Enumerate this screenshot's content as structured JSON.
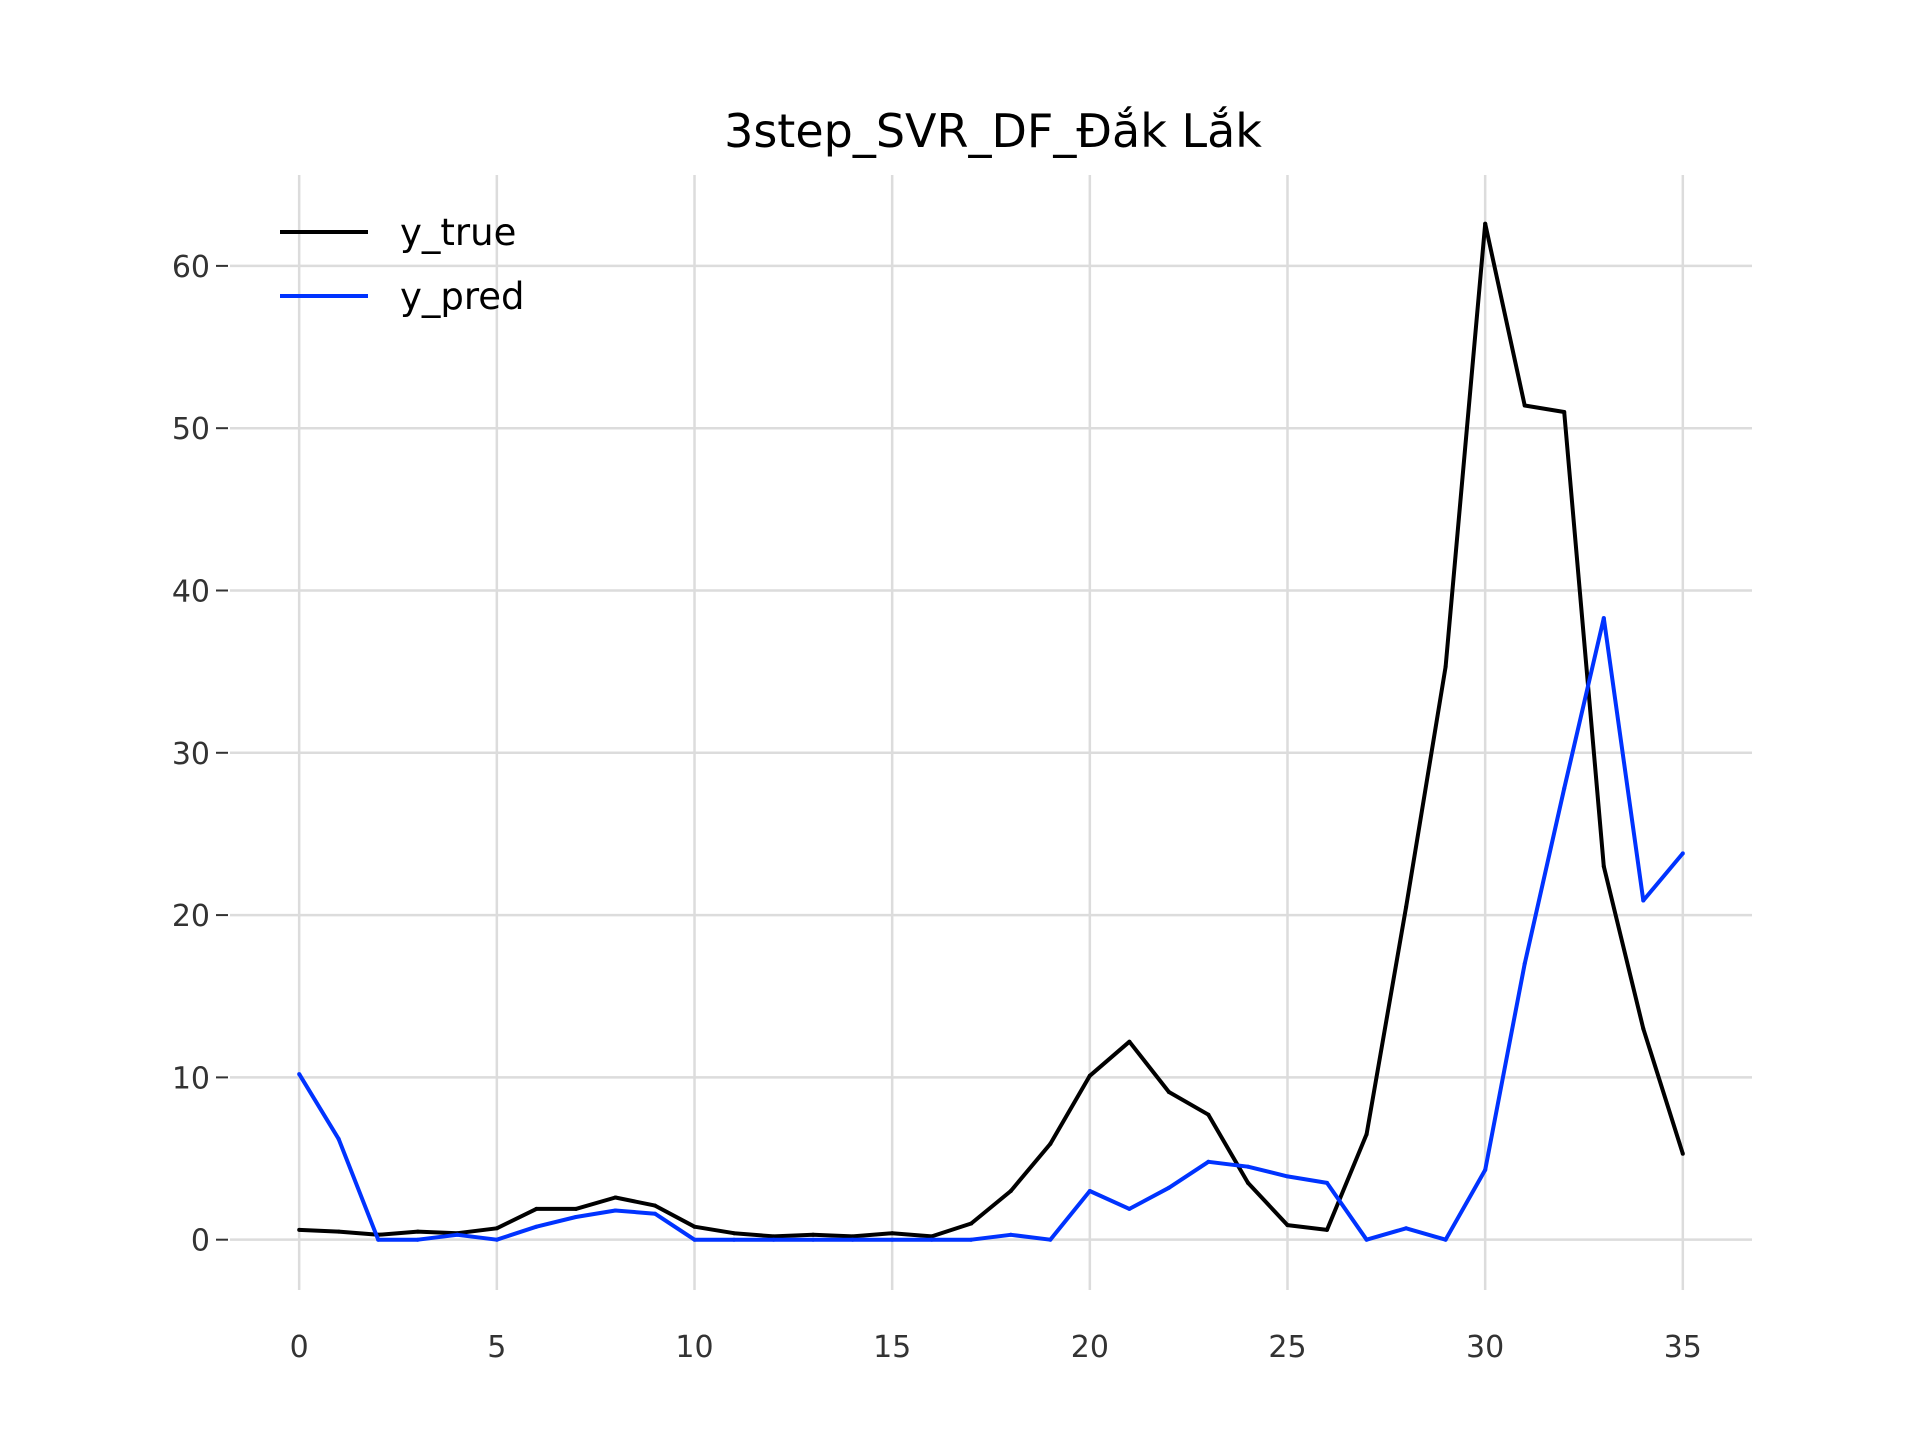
{
  "chart_data": {
    "type": "line",
    "title": "3step_SVR_DF_Đắk Lắk",
    "xlabel": "",
    "ylabel": "",
    "x": [
      0,
      1,
      2,
      3,
      4,
      5,
      6,
      7,
      8,
      9,
      10,
      11,
      12,
      13,
      14,
      15,
      16,
      17,
      18,
      19,
      20,
      21,
      22,
      23,
      24,
      25,
      26,
      27,
      28,
      29,
      30,
      31,
      32,
      33,
      34,
      35
    ],
    "xlim": [
      -1.75,
      36.75
    ],
    "ylim": [
      -3.1,
      65.6
    ],
    "xticks": [
      0,
      5,
      10,
      15,
      20,
      25,
      30,
      35
    ],
    "xtick_labels": [
      "0",
      "5",
      "10",
      "15",
      "20",
      "25",
      "30",
      "35"
    ],
    "yticks": [
      0,
      10,
      20,
      30,
      40,
      50,
      60
    ],
    "ytick_labels": [
      "0",
      "10",
      "20",
      "30",
      "40",
      "50",
      "60"
    ],
    "grid": true,
    "legend_position": "top-left",
    "series": [
      {
        "name": "y_true",
        "color": "#000000",
        "values": [
          0.6,
          0.5,
          0.3,
          0.5,
          0.4,
          0.7,
          1.9,
          1.9,
          2.6,
          2.1,
          0.8,
          0.4,
          0.2,
          0.3,
          0.2,
          0.4,
          0.2,
          1.0,
          3.0,
          5.9,
          10.1,
          12.2,
          9.1,
          7.7,
          3.5,
          0.9,
          0.6,
          6.5,
          20.5,
          35.3,
          62.6,
          51.4,
          51.0,
          23.0,
          13.0,
          5.3
        ]
      },
      {
        "name": "y_pred",
        "color": "#0033ff",
        "values": [
          10.2,
          6.2,
          0.0,
          0.0,
          0.3,
          0.0,
          0.8,
          1.4,
          1.8,
          1.6,
          0.0,
          0.0,
          0.0,
          0.0,
          0.0,
          0.0,
          0.0,
          0.0,
          0.3,
          0.0,
          3.0,
          1.9,
          3.2,
          4.8,
          4.5,
          3.9,
          3.5,
          0.0,
          0.7,
          0.0,
          4.3,
          17.0,
          27.8,
          38.3,
          20.9,
          23.8
        ]
      }
    ]
  }
}
